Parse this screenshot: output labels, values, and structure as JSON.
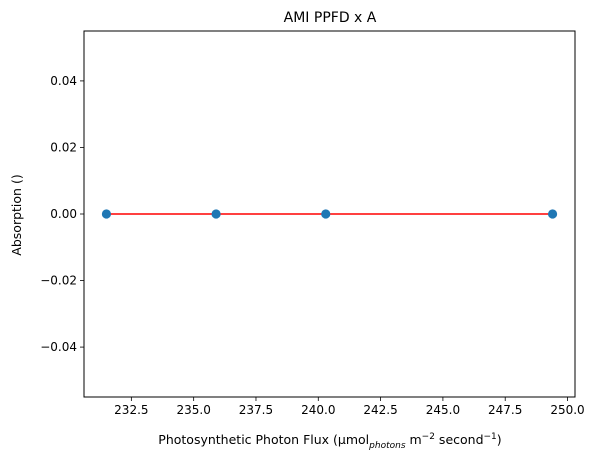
{
  "chart_data": {
    "type": "scatter",
    "title": "AMI PPFD x A",
    "xlabel": {
      "prefix": "Photosynthetic Photon Flux (µmol",
      "sub1": "photons",
      "mid": " m",
      "sup1": "−2",
      "mid2": " second",
      "sup2": "−1",
      "suffix": ")"
    },
    "ylabel": "Absorption ()",
    "xlim": [
      230.6,
      250.3
    ],
    "ylim": [
      -0.055,
      0.055
    ],
    "xticks": [
      232.5,
      235.0,
      237.5,
      240.0,
      242.5,
      245.0,
      247.5,
      250.0
    ],
    "xtick_labels": [
      "232.5",
      "235.0",
      "237.5",
      "240.0",
      "242.5",
      "245.0",
      "247.5",
      "250.0"
    ],
    "yticks": [
      -0.04,
      -0.02,
      0.0,
      0.02,
      0.04
    ],
    "ytick_labels": [
      "−0.04",
      "−0.02",
      "0.00",
      "0.02",
      "0.04"
    ],
    "grid": false,
    "series": [
      {
        "kind": "scatter",
        "x": [
          231.5,
          235.9,
          240.3,
          249.4
        ],
        "y": [
          0.0,
          0.0,
          0.0,
          0.0
        ],
        "color": "#1f77b4"
      },
      {
        "kind": "line",
        "x": [
          231.5,
          249.4
        ],
        "y": [
          0.0,
          0.0
        ],
        "color": "#ff0000"
      }
    ]
  }
}
